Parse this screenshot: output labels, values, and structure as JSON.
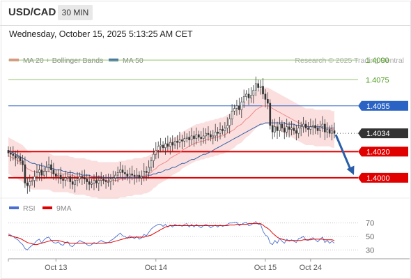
{
  "header": {
    "symbol": "USD/CAD",
    "timeframe": "30 MIN",
    "datetime": "Wednesday, October 15, 2025 5:13:25 AM CET"
  },
  "chart_data": [
    {
      "type": "line",
      "panel": "price",
      "legend": [
        {
          "label": "MA 20 + Bollinger Bands",
          "color": "#f08a8a"
        },
        {
          "label": "MA 50",
          "color": "#2f5fa8"
        }
      ],
      "credit": "Research © 2025 Trading Central",
      "ylim": [
        1.3985,
        1.4105
      ],
      "levels": [
        {
          "value": 1.409,
          "label": "1.4090",
          "color": "#8fc66a",
          "label_color": "#4d9a1f",
          "style": "green"
        },
        {
          "value": 1.4075,
          "label": "1.4075",
          "color": "#8fc66a",
          "label_color": "#4d9a1f",
          "style": "green"
        },
        {
          "value": 1.4055,
          "label": "1.4055",
          "color": "#2a63c4",
          "label_color": "#ffffff",
          "style": "blue"
        },
        {
          "value": 1.4034,
          "label": "1.4034",
          "color": "#333333",
          "label_color": "#ffffff",
          "style": "current"
        },
        {
          "value": 1.402,
          "label": "1.4020",
          "color": "#e00000",
          "label_color": "#ffffff",
          "style": "red"
        },
        {
          "value": 1.4,
          "label": "1.4000",
          "color": "#e00000",
          "label_color": "#ffffff",
          "style": "red"
        }
      ],
      "close": [
        1.4019,
        1.4018,
        1.4017,
        1.4015,
        1.4016,
        1.4013,
        1.401,
        1.3996,
        1.3994,
        1.3997,
        1.3998,
        1.4001,
        1.4004,
        1.4006,
        1.4002,
        1.4005,
        1.4008,
        1.401,
        1.4006,
        1.4003,
        1.4001,
        1.4002,
        1.3999,
        1.3998,
        1.4,
        1.4001,
        1.3997,
        1.3995,
        1.3998,
        1.3999,
        1.4001,
        1.4,
        1.3999,
        1.3997,
        1.3995,
        1.3996,
        1.3998,
        1.3996,
        1.3998,
        1.3999,
        1.3998,
        1.3997,
        1.3997,
        1.3999,
        1.4,
        1.4002,
        1.4004,
        1.4006,
        1.4004,
        1.4003,
        1.4001,
        1.4003,
        1.4002,
        1.4001,
        1.4002,
        1.4,
        1.4001,
        1.4005,
        1.4004,
        1.4008,
        1.4013,
        1.4018,
        1.4021,
        1.4024,
        1.4025,
        1.4023,
        1.4026,
        1.4024,
        1.4027,
        1.4025,
        1.4028,
        1.4027,
        1.4029,
        1.4028,
        1.403,
        1.4031,
        1.4029,
        1.4032,
        1.403,
        1.4033,
        1.4031,
        1.403,
        1.4032,
        1.4034,
        1.4033,
        1.4031,
        1.4032,
        1.4035,
        1.4034,
        1.4037,
        1.4036,
        1.4038,
        1.404,
        1.4045,
        1.4051,
        1.4053,
        1.4055,
        1.4052,
        1.4058,
        1.4062,
        1.4064,
        1.4061,
        1.4063,
        1.4067,
        1.4072,
        1.4069,
        1.407,
        1.4064,
        1.406,
        1.4057,
        1.404,
        1.4035,
        1.4039,
        1.4036,
        1.4041,
        1.4038,
        1.4035,
        1.4039,
        1.4037,
        1.4038,
        1.4036,
        1.4034,
        1.4038,
        1.4039,
        1.4041,
        1.4038,
        1.4037,
        1.4039,
        1.404,
        1.4038,
        1.4036,
        1.4039,
        1.4041,
        1.4035,
        1.4037,
        1.4034,
        1.4036,
        1.4034
      ],
      "ma20": [
        1.4017,
        1.4016,
        1.4015,
        1.4014,
        1.4013,
        1.4012,
        1.4011,
        1.4009,
        1.4007,
        1.4006,
        1.4005,
        1.4005,
        1.4005,
        1.4005,
        1.4005,
        1.4005,
        1.4005,
        1.4005,
        1.4004,
        1.4003,
        1.4003,
        1.4003,
        1.4003,
        1.4003,
        1.4003,
        1.4003,
        1.4002,
        1.4002,
        1.4001,
        1.4001,
        1.4001,
        1.4001,
        1.4001,
        1.4,
        1.4,
        1.3999,
        1.3999,
        1.3999,
        1.3998,
        1.3998,
        1.3998,
        1.3998,
        1.3998,
        1.3998,
        1.3998,
        1.3998,
        1.3998,
        1.3999,
        1.3999,
        1.3999,
        1.4,
        1.4,
        1.4,
        1.4001,
        1.4001,
        1.4001,
        1.4001,
        1.4002,
        1.4002,
        1.4003,
        1.4004,
        1.4006,
        1.4007,
        1.4009,
        1.401,
        1.4011,
        1.4012,
        1.4013,
        1.4015,
        1.4016,
        1.4017,
        1.4018,
        1.4019,
        1.4021,
        1.4022,
        1.4023,
        1.4024,
        1.4025,
        1.4026,
        1.4027,
        1.4027,
        1.4028,
        1.4028,
        1.4029,
        1.4029,
        1.403,
        1.403,
        1.4031,
        1.4031,
        1.4032,
        1.4032,
        1.4033,
        1.4034,
        1.4035,
        1.4036,
        1.4037,
        1.4039,
        1.404,
        1.4041,
        1.4043,
        1.4045,
        1.4046,
        1.4048,
        1.405,
        1.4052,
        1.4053,
        1.4054,
        1.4055,
        1.4055,
        1.4055,
        1.4054,
        1.4053,
        1.4052,
        1.4051,
        1.405,
        1.4049,
        1.4048,
        1.4047,
        1.4046,
        1.4045,
        1.4044,
        1.4043,
        1.4042,
        1.4041,
        1.404,
        1.4039,
        1.4039,
        1.4039,
        1.4039,
        1.4038,
        1.4038,
        1.4038,
        1.4038,
        1.4038,
        1.4038,
        1.4038,
        1.4037,
        1.4037
      ],
      "ma50": [
        1.4021,
        1.402,
        1.4019,
        1.4018,
        1.4017,
        1.4016,
        1.4015,
        1.4014,
        1.4013,
        1.4012,
        1.4011,
        1.4011,
        1.401,
        1.401,
        1.4009,
        1.4009,
        1.4008,
        1.4008,
        1.4007,
        1.4007,
        1.4006,
        1.4006,
        1.4006,
        1.4005,
        1.4005,
        1.4004,
        1.4004,
        1.4004,
        1.4003,
        1.4003,
        1.4003,
        1.4002,
        1.4002,
        1.4002,
        1.4002,
        1.4001,
        1.4001,
        1.4001,
        1.4001,
        1.4001,
        1.4,
        1.4,
        1.4,
        1.4,
        1.4,
        1.4,
        1.4,
        1.4,
        1.4,
        1.4,
        1.4,
        1.4,
        1.4,
        1.4,
        1.4,
        1.4,
        1.4001,
        1.4001,
        1.4001,
        1.4002,
        1.4002,
        1.4003,
        1.4003,
        1.4004,
        1.4004,
        1.4005,
        1.4006,
        1.4006,
        1.4007,
        1.4008,
        1.4008,
        1.4009,
        1.401,
        1.4011,
        1.4011,
        1.4012,
        1.4013,
        1.4014,
        1.4014,
        1.4015,
        1.4016,
        1.4017,
        1.4018,
        1.4018,
        1.4019,
        1.402,
        1.4021,
        1.4022,
        1.4023,
        1.4024,
        1.4025,
        1.4026,
        1.4027,
        1.4028,
        1.4029,
        1.403,
        1.4031,
        1.4032,
        1.4033,
        1.4034,
        1.4035,
        1.4036,
        1.4037,
        1.4038,
        1.4039,
        1.404,
        1.4041,
        1.4041,
        1.4042,
        1.4042,
        1.4042,
        1.4042,
        1.4042,
        1.4042,
        1.4042,
        1.4042,
        1.4042,
        1.4041,
        1.4041,
        1.4041,
        1.4041,
        1.404,
        1.404,
        1.404,
        1.404,
        1.404,
        1.4039,
        1.4039,
        1.4039,
        1.4039,
        1.4039,
        1.4039,
        1.4038,
        1.4038,
        1.4038,
        1.4038,
        1.4038,
        1.4038
      ],
      "band_width": 0.0014,
      "forecast": {
        "from": 1.4034,
        "to": 1.4
      }
    },
    {
      "type": "line",
      "panel": "rsi",
      "legend": [
        {
          "label": "RSI",
          "color": "#4a6fd0"
        },
        {
          "label": "9MA",
          "color": "#e00000"
        }
      ],
      "ylim": [
        20,
        80
      ],
      "yticks": [
        30,
        50,
        70
      ],
      "rsi": [
        54,
        52,
        50,
        47,
        45,
        41,
        38,
        32,
        30,
        34,
        37,
        40,
        44,
        46,
        40,
        45,
        48,
        49,
        44,
        41,
        40,
        42,
        38,
        37,
        41,
        42,
        36,
        35,
        39,
        41,
        44,
        42,
        41,
        38,
        36,
        38,
        41,
        39,
        42,
        44,
        42,
        41,
        41,
        44,
        46,
        49,
        52,
        55,
        51,
        50,
        47,
        51,
        49,
        47,
        50,
        46,
        48,
        53,
        51,
        56,
        61,
        64,
        66,
        68,
        68,
        65,
        68,
        64,
        67,
        64,
        68,
        66,
        67,
        65,
        68,
        69,
        64,
        68,
        64,
        68,
        65,
        63,
        66,
        68,
        66,
        63,
        65,
        67,
        64,
        67,
        65,
        66,
        68,
        70,
        70,
        71,
        71,
        66,
        68,
        70,
        71,
        66,
        67,
        70,
        72,
        68,
        68,
        58,
        52,
        50,
        40,
        38,
        44,
        40,
        47,
        43,
        40,
        46,
        43,
        45,
        43,
        41,
        47,
        48,
        50,
        45,
        44,
        47,
        48,
        45,
        42,
        46,
        49,
        41,
        44,
        40,
        43,
        40
      ],
      "ma9": [
        52,
        51,
        50,
        49,
        48,
        47,
        45,
        43,
        41,
        40,
        39,
        38,
        38,
        39,
        40,
        41,
        42,
        43,
        44,
        44,
        44,
        44,
        43,
        42,
        41,
        41,
        40,
        40,
        40,
        40,
        40,
        40,
        40,
        40,
        40,
        40,
        40,
        40,
        40,
        40,
        40,
        40,
        41,
        41,
        42,
        43,
        44,
        45,
        46,
        47,
        48,
        48,
        49,
        49,
        49,
        49,
        49,
        49,
        50,
        51,
        52,
        54,
        56,
        58,
        60,
        62,
        64,
        65,
        66,
        66,
        66,
        66,
        66,
        66,
        66,
        66,
        66,
        66,
        66,
        66,
        66,
        66,
        66,
        66,
        66,
        66,
        66,
        66,
        66,
        66,
        66,
        66,
        66,
        67,
        67,
        67,
        68,
        68,
        68,
        68,
        68,
        69,
        69,
        69,
        69,
        69,
        69,
        67,
        64,
        62,
        59,
        55,
        52,
        49,
        47,
        46,
        45,
        44,
        44,
        44,
        44,
        44,
        44,
        44,
        45,
        45,
        45,
        45,
        46,
        46,
        46,
        46,
        46,
        45,
        45,
        45,
        45,
        44
      ]
    }
  ],
  "x_axis": {
    "ticks": [
      {
        "label": "Oct 13",
        "index": 20
      },
      {
        "label": "Oct 14",
        "index": 62
      },
      {
        "label": "Oct 15",
        "index": 108
      },
      {
        "label": "Oct 24",
        "index": 127
      }
    ]
  }
}
